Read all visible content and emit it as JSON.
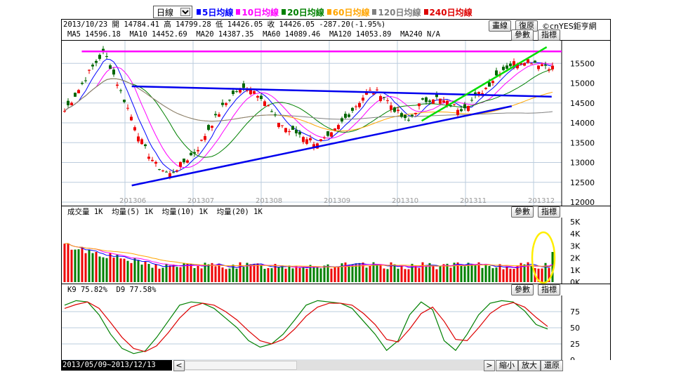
{
  "toolbar": {
    "period": "日線",
    "ma_legend": [
      {
        "label": "5日均線",
        "color": "#0000ff"
      },
      {
        "label": "10日均線",
        "color": "#ff00ff"
      },
      {
        "label": "20日均線",
        "color": "#008000"
      },
      {
        "label": "60日均線",
        "color": "#ffa500"
      },
      {
        "label": "120日均線",
        "color": "#808080"
      },
      {
        "label": "240日均線",
        "color": "#dd0000"
      }
    ]
  },
  "header": {
    "ohlc_line": "2013/10/23 開 14784.41 高 14799.28 低 14426.05 收 14426.05 -287.20(-1.95%)",
    "ma_line": "MA5 14596.18  MA10 14452.69  MA20 14387.35  MA60 14089.46  MA120 14053.89  MA240 N/A",
    "btn_draw": "畫線",
    "btn_restore": "復原",
    "logo": "©cnYES鉅亨網",
    "btn_params": "參數",
    "btn_indicator": "指標"
  },
  "volume_panel": {
    "info": "成交量 1K  均量(5) 1K  均量(10) 1K  均量(20) 1K",
    "btn_params": "參數",
    "btn_indicator": "指標"
  },
  "kd_panel": {
    "info": "K9 75.82%  D9 77.58%",
    "btn_params": "參數",
    "btn_indicator": "指標"
  },
  "footer": {
    "date_range": "2013/05/09~2013/12/13",
    "scroll_left": "<",
    "scroll_right": ">",
    "zoom_out": "縮小",
    "zoom_in": "放大",
    "restore": "還原"
  },
  "chart_data": [
    {
      "type": "candlestick",
      "title": "",
      "x_labels": [
        "201306",
        "201307",
        "201308",
        "201309",
        "201310",
        "201311",
        "201312"
      ],
      "ylim": [
        12000,
        16000
      ],
      "y_ticks": [
        12000,
        12500,
        13000,
        13500,
        14000,
        14500,
        15000,
        15500
      ],
      "grid": true,
      "close_path": [
        14300,
        14800,
        15350,
        15800,
        15000,
        14200,
        13400,
        12900,
        12700,
        13000,
        13300,
        13900,
        14400,
        14800,
        14900,
        14650,
        14100,
        13800,
        13700,
        13500,
        13600,
        14000,
        14400,
        14800,
        14750,
        14350,
        14000,
        14500,
        14650,
        14500,
        14350,
        14600,
        14900,
        15300,
        15500,
        15600,
        15500,
        15400
      ],
      "annotation_lines": [
        {
          "color": "#ff00ff",
          "from": [
            0.04,
            15800
          ],
          "to": [
            1.0,
            15800
          ]
        },
        {
          "color": "#0000ee",
          "from": [
            0.14,
            14920
          ],
          "to": [
            0.98,
            14660
          ]
        },
        {
          "color": "#0000ee",
          "from": [
            0.14,
            12420
          ],
          "to": [
            0.9,
            14420
          ]
        },
        {
          "color": "#00dd00",
          "from": [
            0.72,
            14050
          ],
          "to": [
            0.97,
            15910
          ]
        }
      ]
    },
    {
      "type": "bar",
      "title": "成交量",
      "ylim": [
        0,
        5000
      ],
      "y_ticks": [
        "0K",
        "1K",
        "2K",
        "3K",
        "4K",
        "5K"
      ],
      "last_value": 2500,
      "typical_value": 1500
    },
    {
      "type": "line",
      "title": "KD",
      "ylim": [
        0,
        100
      ],
      "y_ticks": [
        0,
        25,
        50,
        75
      ],
      "series": [
        {
          "name": "K9",
          "color": "#008000",
          "values": [
            85,
            92,
            90,
            70,
            40,
            18,
            10,
            14,
            35,
            60,
            85,
            90,
            88,
            80,
            65,
            50,
            30,
            20,
            25,
            40,
            62,
            85,
            92,
            90,
            88,
            80,
            60,
            40,
            15,
            30,
            70,
            90,
            78,
            30,
            15,
            40,
            70,
            88,
            92,
            90,
            76,
            55,
            48
          ]
        },
        {
          "name": "D9",
          "color": "#dd0000",
          "values": [
            80,
            86,
            90,
            80,
            58,
            35,
            18,
            13,
            22,
            42,
            65,
            82,
            88,
            85,
            75,
            62,
            45,
            30,
            25,
            32,
            48,
            68,
            82,
            88,
            88,
            85,
            72,
            55,
            32,
            28,
            48,
            72,
            82,
            60,
            32,
            30,
            50,
            72,
            84,
            89,
            82,
            66,
            52
          ]
        }
      ]
    }
  ]
}
